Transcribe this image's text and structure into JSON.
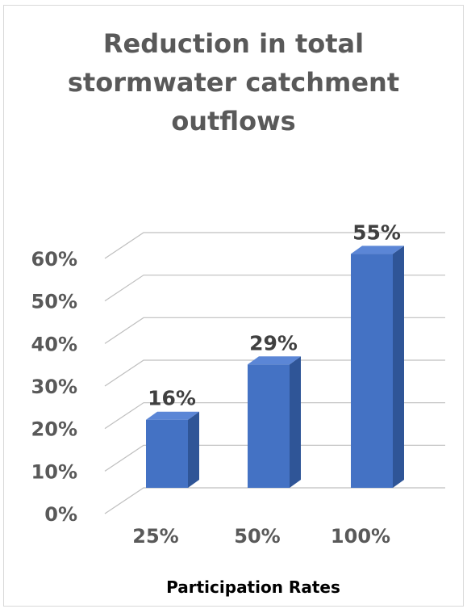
{
  "chart_data": {
    "type": "bar",
    "title_lines": [
      "Reduction in total",
      "stormwater catchment",
      "outflows"
    ],
    "categories": [
      "25%",
      "50%",
      "100%"
    ],
    "values": [
      16,
      29,
      55
    ],
    "data_labels": [
      "16%",
      "29%",
      "55%"
    ],
    "xlabel": "Participation Rates",
    "ylabel": "",
    "ylim": [
      0,
      60
    ],
    "yticks": [
      0,
      10,
      20,
      30,
      40,
      50,
      60
    ],
    "ytick_labels": [
      "0%",
      "10%",
      "20%",
      "30%",
      "40%",
      "50%",
      "60%"
    ],
    "grid": true,
    "style": "3d-column",
    "colors": {
      "bar_front": "#4472c4",
      "bar_side": "#2f5597",
      "bar_top": "#5b86d6",
      "gridline": "#bfbfbf",
      "text": "#595959"
    }
  }
}
